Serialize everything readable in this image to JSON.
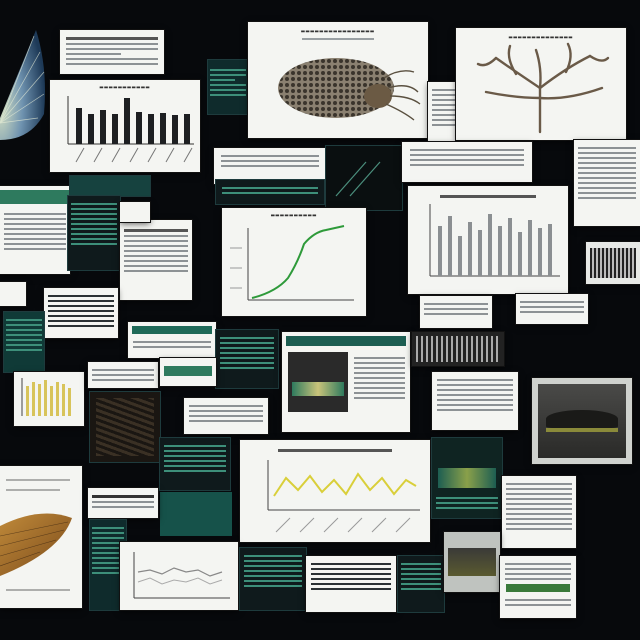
{
  "palette": {
    "background": "#07090c",
    "paper": "#f4f5f2",
    "teal": "#16524a",
    "accent_green": "#3d8f7a",
    "chart_line_green": "#2e9a3a",
    "chart_line_yellow": "#d9cf3a"
  },
  "icons": [
    "fan-illustration",
    "sea-creature-illustration",
    "branching-coral-illustration",
    "fan-coral-illustration"
  ]
}
